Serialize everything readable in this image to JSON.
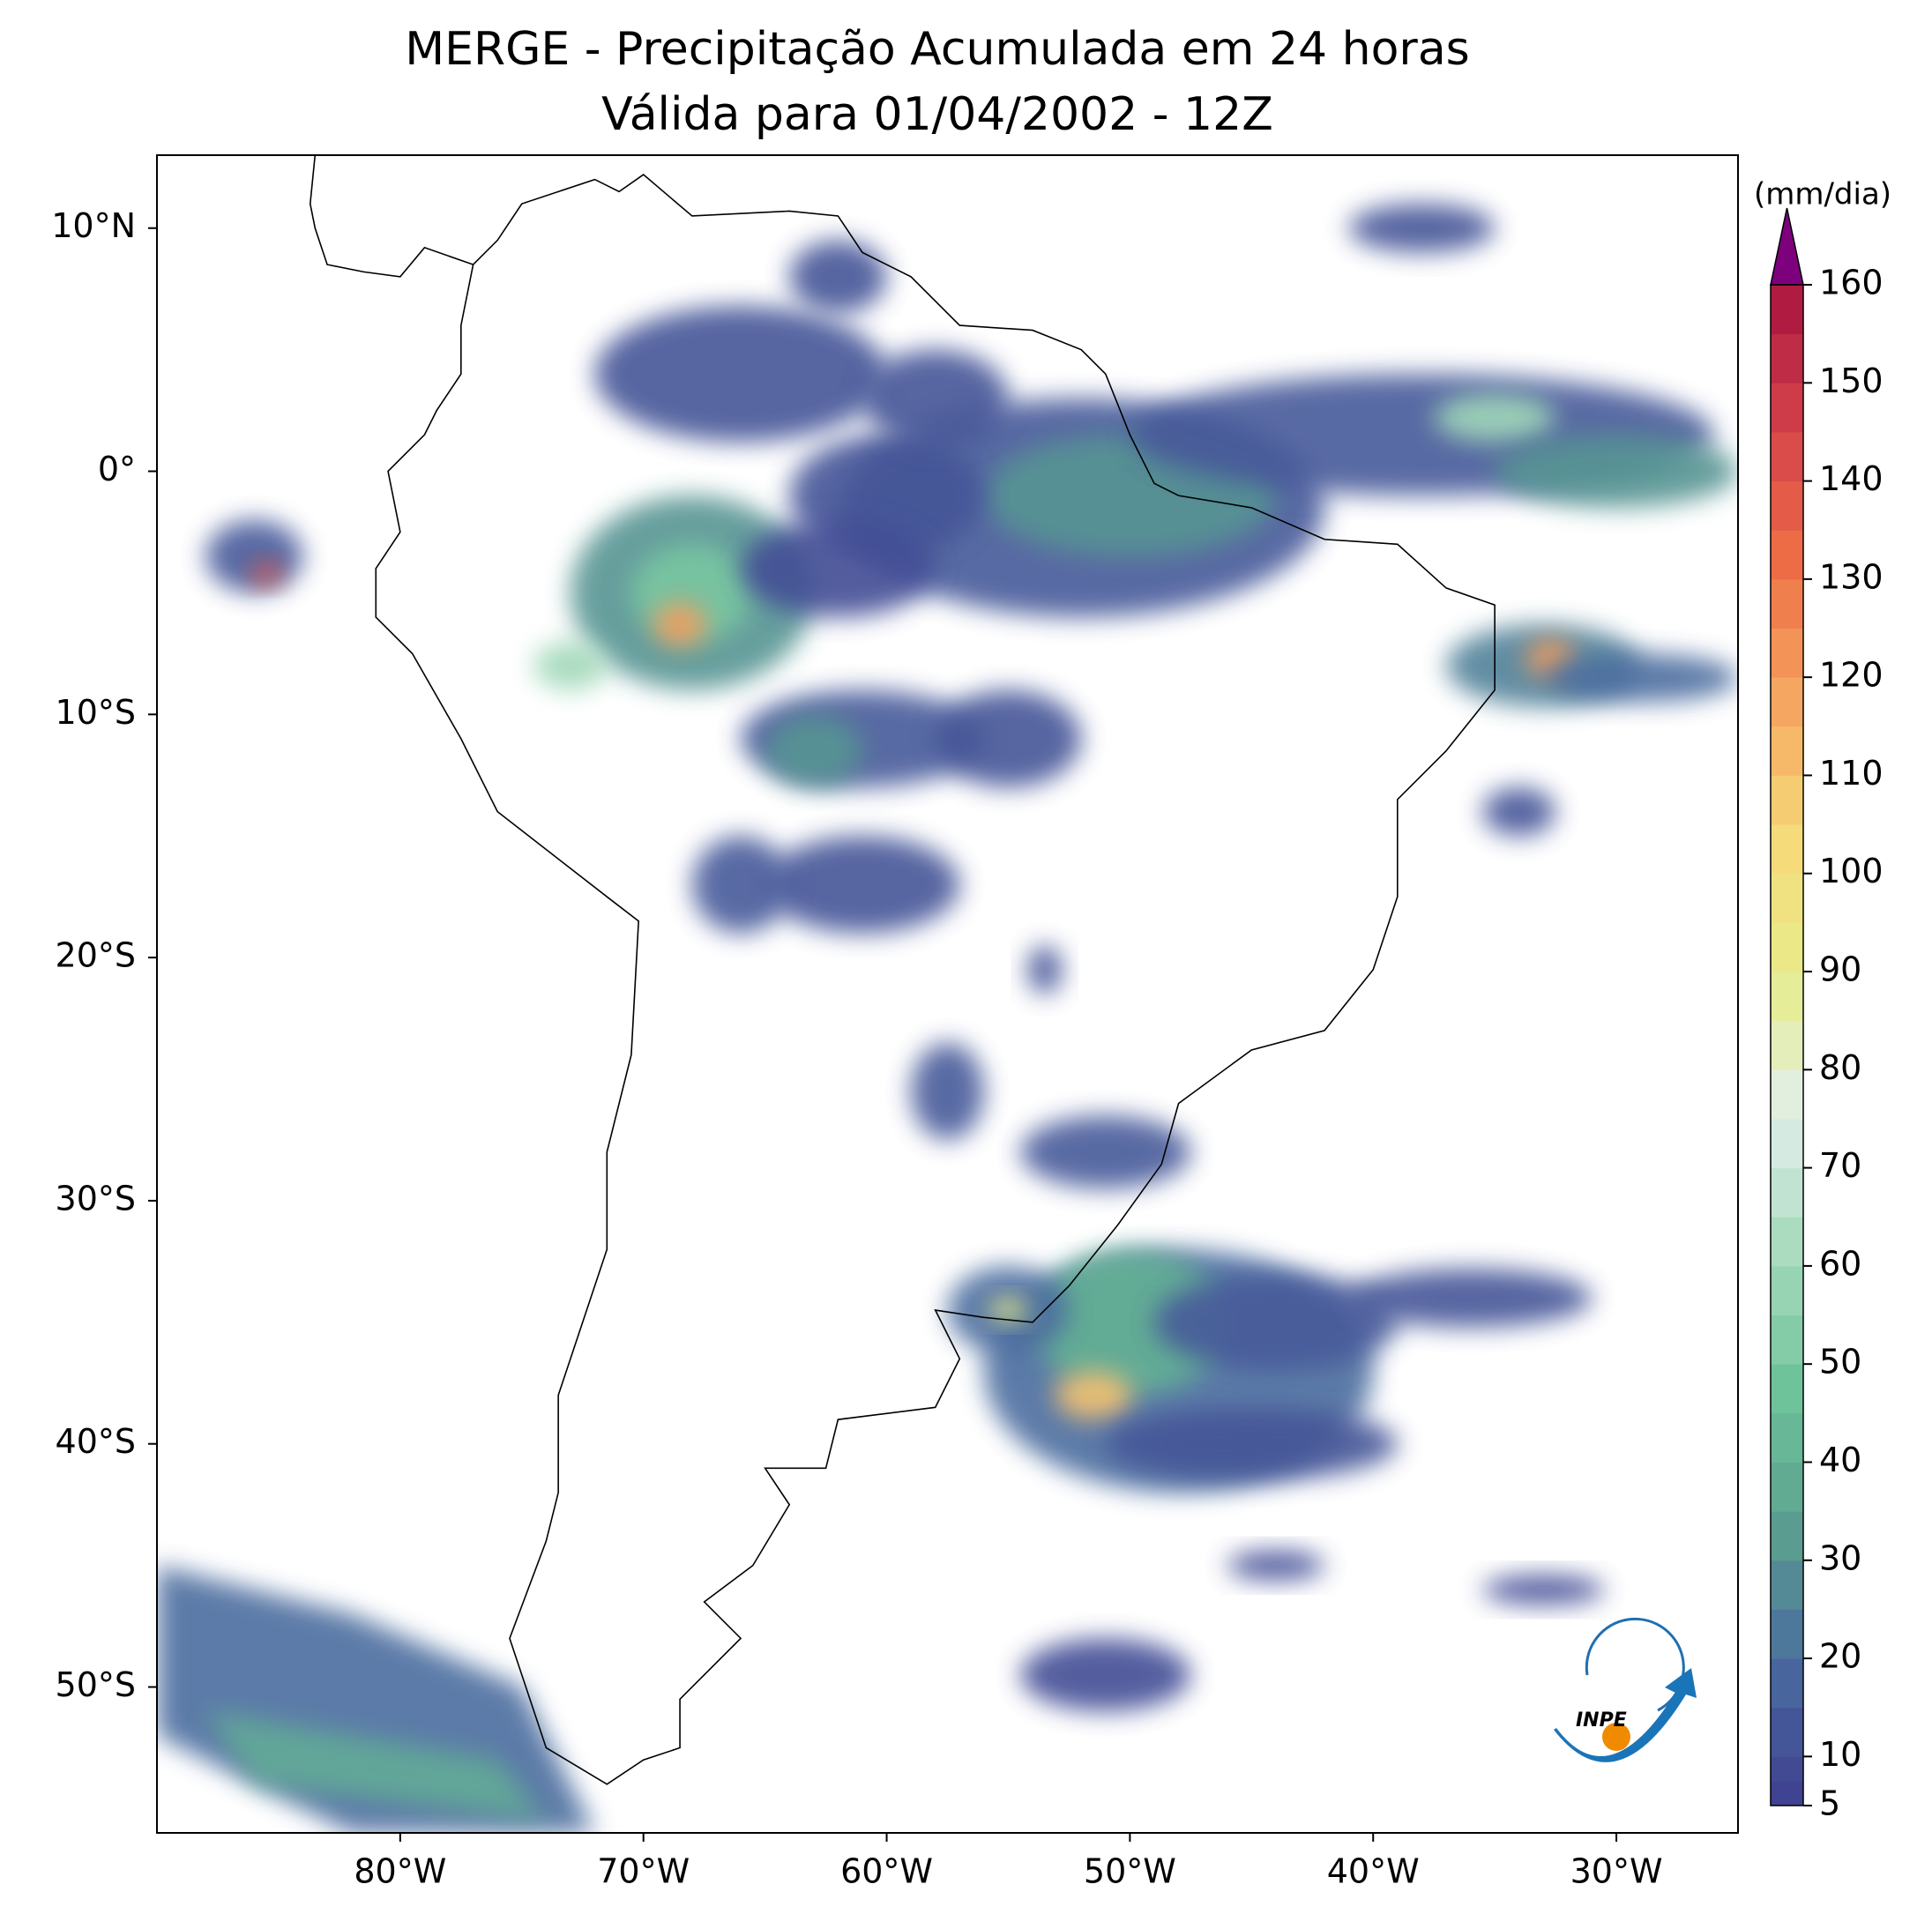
{
  "map": {
    "title": "MERGE - Precipitação Acumulada em 24 horas",
    "subtitle": "Válida para 01/04/2002 - 12Z",
    "lon_range": [
      -90,
      -25
    ],
    "lat_range": [
      -56,
      13
    ],
    "lon_ticks": [
      {
        "value": -80,
        "label": "80°W"
      },
      {
        "value": -70,
        "label": "70°W"
      },
      {
        "value": -60,
        "label": "60°W"
      },
      {
        "value": -50,
        "label": "50°W"
      },
      {
        "value": -40,
        "label": "40°W"
      },
      {
        "value": -30,
        "label": "30°W"
      }
    ],
    "lat_ticks": [
      {
        "value": 10,
        "label": "10°N"
      },
      {
        "value": 0,
        "label": "0°"
      },
      {
        "value": -10,
        "label": "10°S"
      },
      {
        "value": -20,
        "label": "20°S"
      },
      {
        "value": -30,
        "label": "30°S"
      },
      {
        "value": -40,
        "label": "40°S"
      },
      {
        "value": -50,
        "label": "50°S"
      }
    ],
    "colorbar": {
      "label": "(mm/dia)",
      "lim": [
        5,
        160
      ],
      "ticks": [
        5,
        10,
        20,
        30,
        40,
        50,
        60,
        70,
        80,
        90,
        100,
        110,
        120,
        130,
        140,
        150,
        160
      ],
      "colors": [
        "#3f3f8f",
        "#4a6aa0",
        "#5ba08f",
        "#6ec39a",
        "#a6dabc",
        "#e1f0ec",
        "#e6ec8a",
        "#f7da7a",
        "#f5a661",
        "#ee6e46",
        "#d4414a",
        "#a8143f"
      ],
      "extend_color": "#7d007d"
    },
    "logo": "INPE"
  }
}
